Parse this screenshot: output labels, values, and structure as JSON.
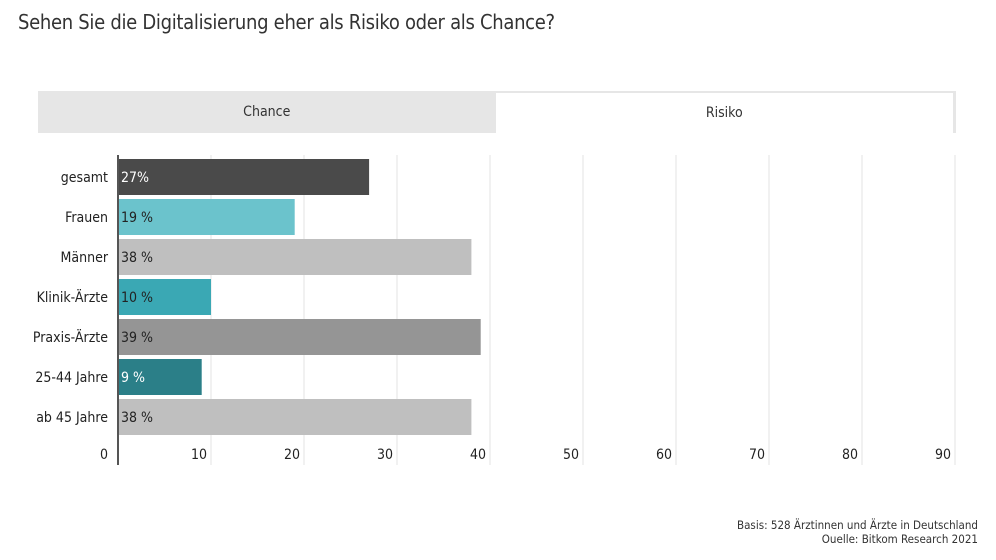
{
  "title": "Sehen Sie die Digitalisierung eher als Risiko oder als Chance?",
  "tabs": [
    {
      "label": "Chance",
      "active": false
    },
    {
      "label": "Risiko",
      "active": true
    }
  ],
  "chart_data": {
    "type": "bar",
    "orientation": "horizontal",
    "categories": [
      "gesamt",
      "Frauen",
      "Männer",
      "Klinik-Ärzte",
      "Praxis-Ärzte",
      "25-44 Jahre",
      "ab 45 Jahre"
    ],
    "values": [
      27,
      19,
      38,
      10,
      39,
      9,
      38
    ],
    "value_labels": [
      "27%",
      "19 %",
      "38 %",
      "10 %",
      "39 %",
      "9 %",
      "38 %"
    ],
    "colors": [
      "#4a4a4a",
      "#6bc3cc",
      "#bfbfbf",
      "#3aa8b4",
      "#959595",
      "#2b7f88",
      "#bfbfbf"
    ],
    "label_colors": [
      "#ffffff",
      "#222222",
      "#222222",
      "#222222",
      "#222222",
      "#ffffff",
      "#222222"
    ],
    "xlim": [
      0,
      90
    ],
    "x_ticks": [
      0,
      10,
      20,
      30,
      40,
      50,
      60,
      70,
      80,
      90
    ],
    "grid": true
  },
  "footer": {
    "basis": "Basis: 528 Ärztinnen und Ärzte in Deutschland",
    "source": "Ouelle: Bitkom Research 2021"
  }
}
